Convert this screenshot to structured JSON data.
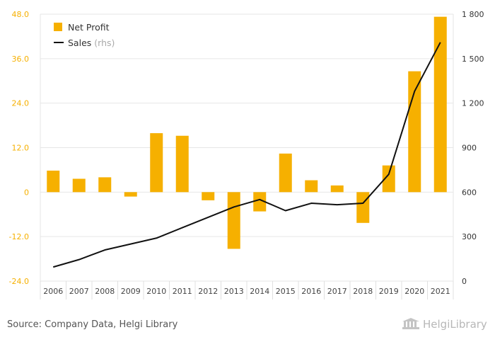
{
  "chart_data": {
    "type": "bar",
    "categories": [
      "2006",
      "2007",
      "2008",
      "2009",
      "2010",
      "2011",
      "2012",
      "2013",
      "2014",
      "2015",
      "2016",
      "2017",
      "2018",
      "2019",
      "2020",
      "2021"
    ],
    "series": [
      {
        "name": "Net Profit",
        "axis": "left",
        "type": "bar",
        "color": "#f6b000",
        "values": [
          5.8,
          3.6,
          4.0,
          -1.2,
          15.9,
          15.2,
          -2.2,
          -15.3,
          -5.2,
          10.4,
          3.2,
          1.8,
          -8.3,
          7.2,
          32.6,
          47.3
        ]
      },
      {
        "name": "Sales",
        "axis": "right",
        "type": "line",
        "color": "#111111",
        "values": [
          95,
          145,
          210,
          250,
          290,
          360,
          430,
          500,
          550,
          475,
          525,
          515,
          525,
          720,
          1280,
          1610
        ]
      }
    ],
    "y_left": {
      "lim": [
        -24,
        48
      ],
      "ticks": [
        "-24.0",
        "-12.0",
        "0",
        "12.0",
        "24.0",
        "36.0",
        "48.0"
      ],
      "tick_values": [
        -24,
        -12,
        0,
        12,
        24,
        36,
        48
      ],
      "color": "#f6b000"
    },
    "y_right": {
      "lim": [
        0,
        1800
      ],
      "ticks": [
        "0",
        "300",
        "600",
        "900",
        "1 200",
        "1 500",
        "1 800"
      ],
      "tick_values": [
        0,
        300,
        600,
        900,
        1200,
        1500,
        1800
      ]
    },
    "grid": true,
    "legend_placement": "top-left"
  },
  "legend": {
    "net_profit": "Net Profit",
    "sales": "Sales",
    "sales_suffix": "(rhs)"
  },
  "footer": {
    "source": "Source: Company Data, Helgi Library",
    "brand": "HelgiLibrary"
  }
}
